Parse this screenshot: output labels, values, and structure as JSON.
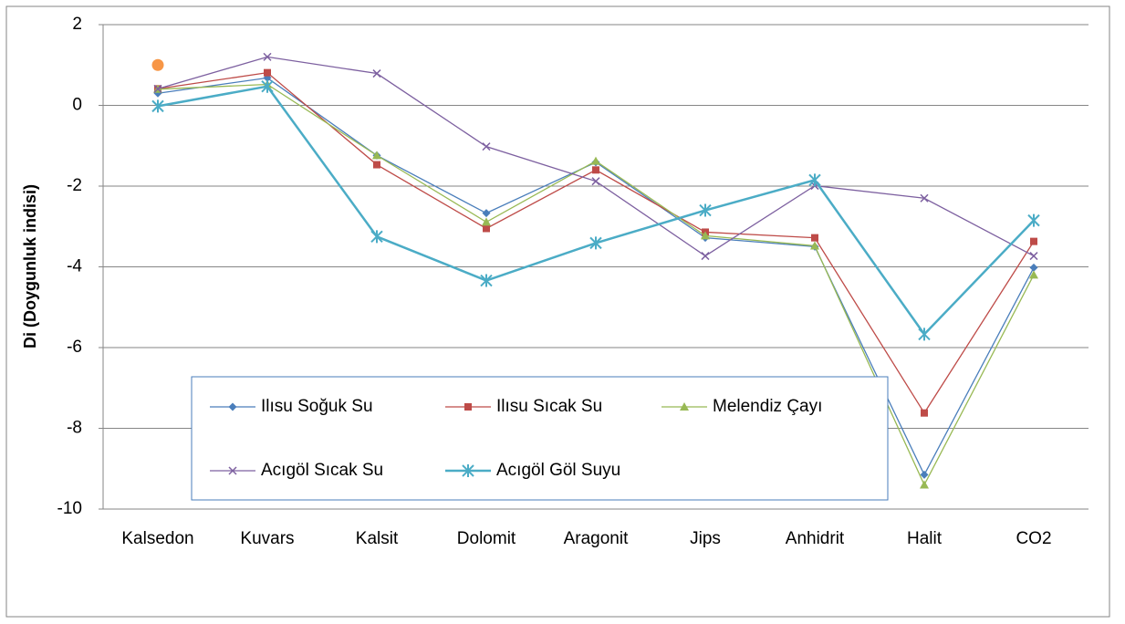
{
  "chart_data": {
    "type": "line",
    "y_label": "Di (Doygunluk indisi)",
    "categories": [
      "Kalsedon",
      "Kuvars",
      "Kalsit",
      "Dolomit",
      "Aragonit",
      "Jips",
      "Anhidrit",
      "Halit",
      "CO2"
    ],
    "ylim": [
      -10,
      2
    ],
    "yticks": [
      2,
      0,
      -2,
      -4,
      -6,
      -8,
      -10
    ],
    "grid": true,
    "series": [
      {
        "name": "Ilısu Soğuk Su",
        "color": "#4a7ebb",
        "marker": "diamond",
        "values": [
          0.3,
          0.68,
          -1.24,
          -2.67,
          -1.41,
          -3.28,
          -3.5,
          -9.15,
          -4.02
        ]
      },
      {
        "name": "Ilısu Sıcak Su",
        "color": "#be4b48",
        "marker": "square",
        "values": [
          0.41,
          0.81,
          -1.47,
          -3.05,
          -1.6,
          -3.14,
          -3.28,
          -7.62,
          -3.37
        ]
      },
      {
        "name": "Melendiz Çayı",
        "color": "#98b954",
        "marker": "triangle",
        "values": [
          0.4,
          0.52,
          -1.24,
          -2.89,
          -1.38,
          -3.23,
          -3.48,
          -9.4,
          -4.2
        ]
      },
      {
        "name": "Acıgöl Sıcak Su",
        "color": "#7d60a0",
        "marker": "x",
        "values": [
          0.41,
          1.2,
          0.79,
          -1.02,
          -1.88,
          -3.73,
          -1.99,
          -2.3,
          -3.73
        ]
      },
      {
        "name": "Acıgöl Göl Suyu",
        "color": "#4bacc6",
        "marker": "star",
        "values": [
          -0.02,
          0.47,
          -3.25,
          -4.34,
          -3.41,
          -2.6,
          -1.85,
          -5.67,
          -2.85
        ]
      },
      {
        "color": "#f79646",
        "marker": "circle",
        "values": [
          1.0,
          null,
          null,
          null,
          null,
          null,
          null,
          null,
          null
        ]
      }
    ]
  }
}
